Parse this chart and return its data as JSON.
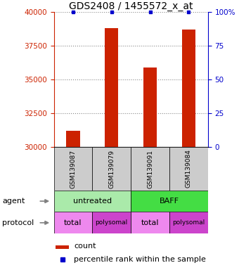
{
  "title": "GDS2408 / 1455572_x_at",
  "samples": [
    "GSM139087",
    "GSM139079",
    "GSM139091",
    "GSM139084"
  ],
  "counts": [
    31200,
    38800,
    35900,
    38700
  ],
  "percentiles": [
    100,
    100,
    100,
    100
  ],
  "ylim_left": [
    30000,
    40000
  ],
  "ylim_right": [
    0,
    100
  ],
  "yticks_left": [
    30000,
    32500,
    35000,
    37500,
    40000
  ],
  "yticks_right": [
    0,
    25,
    50,
    75,
    100
  ],
  "bar_color": "#cc2200",
  "percentile_color": "#0000cc",
  "bar_width": 0.35,
  "agent_labels": [
    "untreated",
    "BAFF"
  ],
  "agent_colors": [
    "#aaeaaa",
    "#44dd44"
  ],
  "protocol_labels": [
    "total",
    "polysomal",
    "total",
    "polysomal"
  ],
  "protocol_color_light": "#ee88ee",
  "protocol_color_dark": "#cc44cc",
  "agent_arrow_label": "agent",
  "protocol_arrow_label": "protocol",
  "legend_count_label": "count",
  "legend_percentile_label": "percentile rank within the sample",
  "grid_color": "#888888",
  "sample_box_color": "#cccccc",
  "title_fontsize": 10,
  "tick_fontsize": 7.5,
  "sample_fontsize": 6.5,
  "annotation_fontsize": 8
}
